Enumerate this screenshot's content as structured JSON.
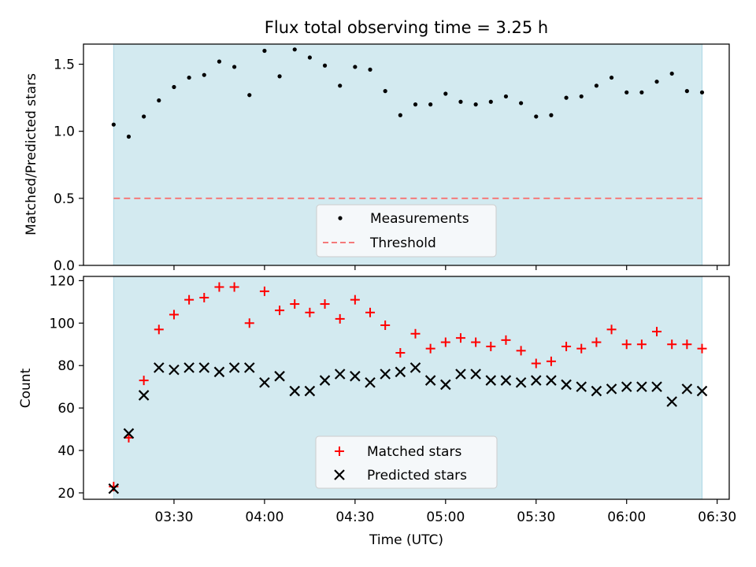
{
  "chart_data": [
    {
      "type": "scatter",
      "title": "Flux total observing time = 3.25 h",
      "xlabel": "",
      "ylabel": "Matched/Predicted stars",
      "ylim": [
        0,
        1.65
      ],
      "yticks": [
        "0.0",
        "0.5",
        "1.0",
        "1.5"
      ],
      "shaded_span": [
        "03:10",
        "06:25"
      ],
      "legend_position": "lower-center",
      "series": [
        {
          "name": "Measurements",
          "marker": "dot",
          "color": "#000000",
          "x": [
            "03:10",
            "03:15",
            "03:20",
            "03:25",
            "03:30",
            "03:35",
            "03:40",
            "03:45",
            "03:50",
            "03:55",
            "04:00",
            "04:05",
            "04:10",
            "04:15",
            "04:20",
            "04:25",
            "04:30",
            "04:35",
            "04:40",
            "04:45",
            "04:50",
            "04:55",
            "05:00",
            "05:05",
            "05:10",
            "05:15",
            "05:20",
            "05:25",
            "05:30",
            "05:35",
            "05:40",
            "05:45",
            "05:50",
            "05:55",
            "06:00",
            "06:05",
            "06:10",
            "06:15",
            "06:20",
            "06:25"
          ],
          "values": [
            1.05,
            0.96,
            1.11,
            1.23,
            1.33,
            1.4,
            1.42,
            1.52,
            1.48,
            1.27,
            1.6,
            1.41,
            1.61,
            1.55,
            1.49,
            1.34,
            1.48,
            1.46,
            1.3,
            1.12,
            1.2,
            1.2,
            1.28,
            1.22,
            1.2,
            1.22,
            1.26,
            1.21,
            1.11,
            1.12,
            1.25,
            1.26,
            1.34,
            1.4,
            1.29,
            1.29,
            1.37,
            1.43,
            1.3,
            1.29
          ]
        },
        {
          "name": "Threshold",
          "marker": "dashed-line",
          "color": "#f47a7a",
          "x": [
            "03:10",
            "06:25"
          ],
          "values": [
            0.5,
            0.5
          ]
        }
      ]
    },
    {
      "type": "scatter",
      "title": "",
      "xlabel": "Time (UTC)",
      "ylabel": "Count",
      "ylim": [
        17,
        122
      ],
      "yticks": [
        "20",
        "40",
        "60",
        "80",
        "100",
        "120"
      ],
      "xticks": [
        "03:30",
        "04:00",
        "04:30",
        "05:00",
        "05:30",
        "06:00",
        "06:30"
      ],
      "shaded_span": [
        "03:10",
        "06:25"
      ],
      "legend_position": "lower-center",
      "series": [
        {
          "name": "Matched stars",
          "marker": "plus",
          "color": "#ff0000",
          "x": [
            "03:10",
            "03:15",
            "03:20",
            "03:25",
            "03:30",
            "03:35",
            "03:40",
            "03:45",
            "03:50",
            "03:55",
            "04:00",
            "04:05",
            "04:10",
            "04:15",
            "04:20",
            "04:25",
            "04:30",
            "04:35",
            "04:40",
            "04:45",
            "04:50",
            "04:55",
            "05:00",
            "05:05",
            "05:10",
            "05:15",
            "05:20",
            "05:25",
            "05:30",
            "05:35",
            "05:40",
            "05:45",
            "05:50",
            "05:55",
            "06:00",
            "06:05",
            "06:10",
            "06:15",
            "06:20",
            "06:25"
          ],
          "values": [
            23,
            46,
            73,
            97,
            104,
            111,
            112,
            117,
            117,
            100,
            115,
            106,
            109,
            105,
            109,
            102,
            111,
            105,
            99,
            86,
            95,
            88,
            91,
            93,
            91,
            89,
            92,
            87,
            81,
            82,
            89,
            88,
            91,
            97,
            90,
            90,
            96,
            90,
            90,
            88
          ]
        },
        {
          "name": "Predicted stars",
          "marker": "x",
          "color": "#000000",
          "x": [
            "03:10",
            "03:15",
            "03:20",
            "03:25",
            "03:30",
            "03:35",
            "03:40",
            "03:45",
            "03:50",
            "03:55",
            "04:00",
            "04:05",
            "04:10",
            "04:15",
            "04:20",
            "04:25",
            "04:30",
            "04:35",
            "04:40",
            "04:45",
            "04:50",
            "04:55",
            "05:00",
            "05:05",
            "05:10",
            "05:15",
            "05:20",
            "05:25",
            "05:30",
            "05:35",
            "05:40",
            "05:45",
            "05:50",
            "05:55",
            "06:00",
            "06:05",
            "06:10",
            "06:15",
            "06:20",
            "06:25"
          ],
          "values": [
            22,
            48,
            66,
            79,
            78,
            79,
            79,
            77,
            79,
            79,
            72,
            75,
            68,
            68,
            73,
            76,
            75,
            72,
            76,
            77,
            79,
            73,
            71,
            76,
            76,
            73,
            73,
            72,
            73,
            73,
            71,
            70,
            68,
            69,
            70,
            70,
            70,
            63,
            69,
            68
          ]
        }
      ]
    }
  ],
  "colors": {
    "shade": "#d3eaf0",
    "shade_edge": "#aed8e6"
  }
}
